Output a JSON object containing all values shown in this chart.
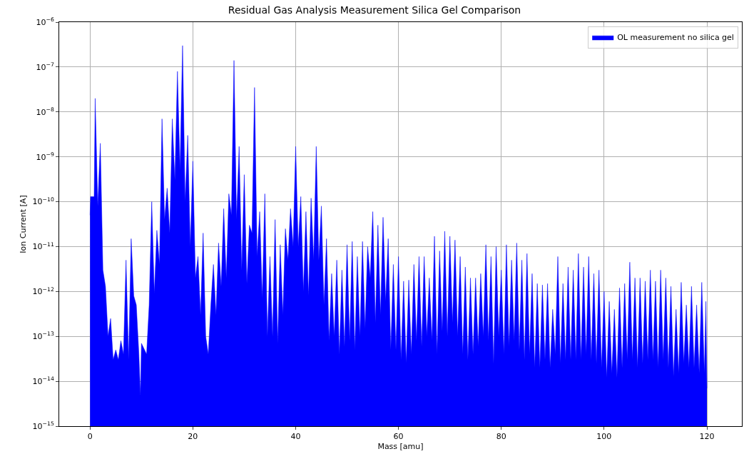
{
  "chart_data": {
    "type": "area",
    "title": "Residual Gas Analysis Measurement Silica Gel Comparison",
    "xlabel": "Mass [amu]",
    "ylabel": "Ion Current [A]",
    "x": [
      0,
      0.1,
      0.8,
      1,
      1.5,
      2,
      2.5,
      3,
      3.5,
      4,
      4.5,
      5,
      5.5,
      6,
      6.5,
      7,
      7.5,
      8,
      8.5,
      9,
      9.5,
      9.8,
      10,
      11,
      11.5,
      12,
      12.5,
      13,
      13.5,
      14,
      14.5,
      15,
      15.5,
      16,
      16.5,
      17,
      17.5,
      18,
      18.5,
      19,
      19.5,
      20,
      20.5,
      21,
      21.5,
      22,
      22.5,
      23,
      23.5,
      24,
      24.5,
      25,
      25.5,
      26,
      26.5,
      27,
      27.5,
      28,
      28.5,
      29,
      29.5,
      30,
      30.5,
      31,
      31.5,
      32,
      32.5,
      33,
      33.5,
      34,
      34.5,
      35,
      35.5,
      36,
      36.5,
      37,
      37.5,
      38,
      38.5,
      39,
      39.5,
      40,
      40.5,
      41,
      41.5,
      42,
      42.5,
      43,
      43.5,
      44,
      44.5,
      45,
      45.5,
      46,
      46.5,
      47,
      47.5,
      48,
      48.5,
      49,
      49.5,
      50,
      50.5,
      51,
      51.5,
      52,
      52.5,
      53,
      53.5,
      54,
      54.5,
      55,
      55.5,
      56,
      56.5,
      57,
      57.5,
      58,
      58.5,
      59,
      59.5,
      60,
      60.5,
      61,
      61.5,
      62,
      62.5,
      63,
      63.5,
      64,
      64.5,
      65,
      65.5,
      66,
      66.5,
      67,
      67.5,
      68,
      68.5,
      69,
      69.5,
      70,
      70.5,
      71,
      71.5,
      72,
      72.5,
      73,
      73.5,
      74,
      74.5,
      75,
      75.5,
      76,
      76.5,
      77,
      77.5,
      78,
      78.5,
      79,
      79.5,
      80,
      80.5,
      81,
      81.5,
      82,
      82.5,
      83,
      83.5,
      84,
      84.5,
      85,
      85.5,
      86,
      86.5,
      87,
      87.5,
      88,
      88.5,
      89,
      89.5,
      90,
      90.5,
      91,
      91.5,
      92,
      92.5,
      93,
      93.5,
      94,
      94.5,
      95,
      95.5,
      96,
      96.5,
      97,
      97.5,
      98,
      98.5,
      99,
      99.5,
      100,
      100.5,
      101,
      101.5,
      102,
      102.5,
      103,
      103.5,
      104,
      104.5,
      105,
      105.5,
      106,
      106.5,
      107,
      107.5,
      108,
      108.5,
      109,
      109.5,
      110,
      110.5,
      111,
      111.5,
      112,
      112.5,
      113,
      113.5,
      114,
      114.5,
      115,
      115.5,
      116,
      116.5,
      117,
      117.5,
      118,
      118.5,
      119,
      119.5,
      119.8,
      120
    ],
    "series": [
      {
        "name": "OL measurement no silica gel",
        "color": "#0000ff",
        "values": [
          5e-11,
          1.3e-10,
          1.3e-10,
          2e-08,
          8e-11,
          2e-09,
          3e-12,
          1.3e-12,
          1e-13,
          2.5e-13,
          3e-14,
          5e-14,
          3e-14,
          8e-14,
          4e-14,
          5e-12,
          3e-14,
          1.5e-11,
          8e-13,
          5e-13,
          4e-14,
          5e-15,
          7e-14,
          4e-14,
          5e-13,
          1e-10,
          9e-13,
          2.3e-11,
          4e-12,
          7e-09,
          4e-11,
          2e-10,
          2e-11,
          7e-09,
          3e-10,
          8e-08,
          5e-10,
          3e-07,
          1e-10,
          3e-09,
          1e-11,
          8e-10,
          2e-12,
          6e-12,
          3e-13,
          2e-11,
          1e-13,
          4e-14,
          5e-13,
          4e-12,
          3e-13,
          1.2e-11,
          1.3e-12,
          7e-11,
          2e-12,
          1.5e-10,
          5e-11,
          1.4e-07,
          4e-11,
          1.7e-09,
          3e-12,
          4e-10,
          1.5e-12,
          3e-11,
          2e-11,
          3.5e-08,
          6e-12,
          6e-11,
          7e-13,
          1.5e-10,
          1e-13,
          6e-12,
          1e-13,
          4e-11,
          7e-14,
          1.1e-11,
          3e-13,
          2.5e-11,
          5e-12,
          7e-11,
          1e-11,
          1.7e-09,
          1e-11,
          1.3e-10,
          1e-12,
          6e-11,
          8e-13,
          1.2e-10,
          5e-12,
          1.7e-09,
          5e-12,
          8e-11,
          5e-13,
          1.5e-11,
          8e-14,
          2.5e-12,
          1e-13,
          5e-12,
          4e-14,
          3e-12,
          6e-14,
          1.1e-11,
          8e-14,
          1.3e-11,
          5e-14,
          6e-12,
          1e-13,
          1.3e-11,
          1.5e-13,
          1e-11,
          2e-12,
          6e-11,
          2e-13,
          3e-11,
          3e-13,
          4.5e-11,
          6e-13,
          1.5e-11,
          5e-14,
          4e-12,
          5e-14,
          6e-12,
          3e-14,
          1.7e-12,
          2.5e-14,
          1.8e-12,
          4e-14,
          4e-12,
          8e-14,
          6e-12,
          6e-14,
          6e-12,
          1e-13,
          2e-12,
          8e-14,
          1.7e-11,
          4e-14,
          8e-12,
          1.3e-13,
          2.2e-11,
          1e-13,
          1.7e-11,
          2e-13,
          1.4e-11,
          1e-13,
          6e-12,
          4e-14,
          3.5e-12,
          3e-14,
          2e-12,
          4e-14,
          2e-12,
          6e-14,
          2.5e-12,
          1e-13,
          1.1e-11,
          8e-14,
          6e-12,
          2.5e-14,
          1e-11,
          1e-13,
          3e-12,
          4e-14,
          1.1e-11,
          6e-14,
          5e-12,
          8e-14,
          1.2e-11,
          5e-14,
          5e-12,
          3e-14,
          7e-12,
          4e-14,
          2.5e-12,
          2e-14,
          1.5e-12,
          2e-14,
          1.4e-12,
          3e-14,
          1.5e-12,
          2e-14,
          4e-13,
          4e-14,
          6e-12,
          2.5e-14,
          1.5e-12,
          3e-14,
          3.5e-12,
          3e-14,
          3e-12,
          3e-14,
          7e-12,
          3e-14,
          3.5e-12,
          4e-14,
          6e-12,
          3e-14,
          2.5e-12,
          2.5e-14,
          3e-12,
          2e-14,
          1e-12,
          1.2e-14,
          6e-13,
          1.5e-14,
          4e-13,
          1.2e-14,
          1.2e-12,
          2e-14,
          1.5e-12,
          3e-14,
          4.5e-12,
          3e-14,
          2e-12,
          2e-14,
          2e-12,
          2.5e-14,
          1.7e-12,
          3e-14,
          3e-12,
          3e-14,
          1.7e-12,
          2e-14,
          3e-12,
          3e-14,
          2e-12,
          2e-14,
          1.3e-12,
          1.3e-14,
          4e-13,
          1.5e-14,
          1.6e-12,
          2.5e-14,
          5e-13,
          2e-14,
          1.3e-12,
          2e-14,
          5e-13,
          1.5e-14,
          1.6e-12,
          1.5e-14,
          6e-13,
          7e-15
        ]
      }
    ],
    "xlim": [
      -6,
      126.8
    ],
    "xticks": [
      0,
      20,
      40,
      60,
      80,
      100,
      120
    ],
    "ylim": [
      1e-15,
      1e-06
    ],
    "yticks": [
      {
        "value": 1e-15,
        "label": "10$^{−15}$"
      },
      {
        "value": 1e-14,
        "label": "10$^{−14}$"
      },
      {
        "value": 1e-13,
        "label": "10$^{−13}$"
      },
      {
        "value": 1e-12,
        "label": "10$^{−12}$"
      },
      {
        "value": 1e-11,
        "label": "10$^{−11}$"
      },
      {
        "value": 1e-10,
        "label": "10$^{−10}$"
      },
      {
        "value": 1e-09,
        "label": "10$^{−9}$"
      },
      {
        "value": 1e-08,
        "label": "10$^{−8}$"
      },
      {
        "value": 1e-07,
        "label": "10$^{−7}$"
      },
      {
        "value": 1e-06,
        "label": "10$^{−6}$"
      }
    ],
    "log": "y",
    "grid": true,
    "legend": "top right"
  }
}
